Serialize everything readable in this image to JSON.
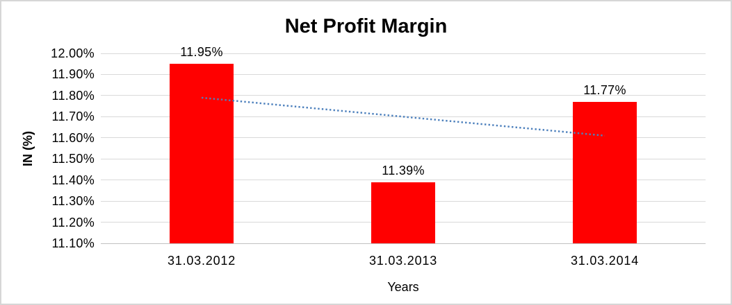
{
  "chart_data": {
    "type": "bar",
    "title": "Net Profit Margin",
    "xlabel": "Years",
    "ylabel": "IN (%)",
    "categories": [
      "31.03.2012",
      "31.03.2013",
      "31.03.2014"
    ],
    "values": [
      11.95,
      11.39,
      11.77
    ],
    "value_labels": [
      "11.95%",
      "11.39%",
      "11.77%"
    ],
    "ylim": [
      11.1,
      12.0
    ],
    "yticks": [
      {
        "value": 12.0,
        "label": "12.00%"
      },
      {
        "value": 11.9,
        "label": "11.90%"
      },
      {
        "value": 11.8,
        "label": "11.80%"
      },
      {
        "value": 11.7,
        "label": "11.70%"
      },
      {
        "value": 11.6,
        "label": "11.60%"
      },
      {
        "value": 11.5,
        "label": "11.50%"
      },
      {
        "value": 11.4,
        "label": "11.40%"
      },
      {
        "value": 11.3,
        "label": "11.30%"
      },
      {
        "value": 11.2,
        "label": "11.20%"
      },
      {
        "value": 11.1,
        "label": "11.10%"
      }
    ],
    "grid": true,
    "legend": "none",
    "colors": {
      "bar": "#ff0000",
      "gridline": "#d9d9d9",
      "trendline": "#4e81bd",
      "text": "#000000",
      "frame_border": "#d6d6d6"
    },
    "trendline": {
      "type": "linear",
      "style": "dotted",
      "start_value": 11.79,
      "end_value": 11.61
    }
  }
}
